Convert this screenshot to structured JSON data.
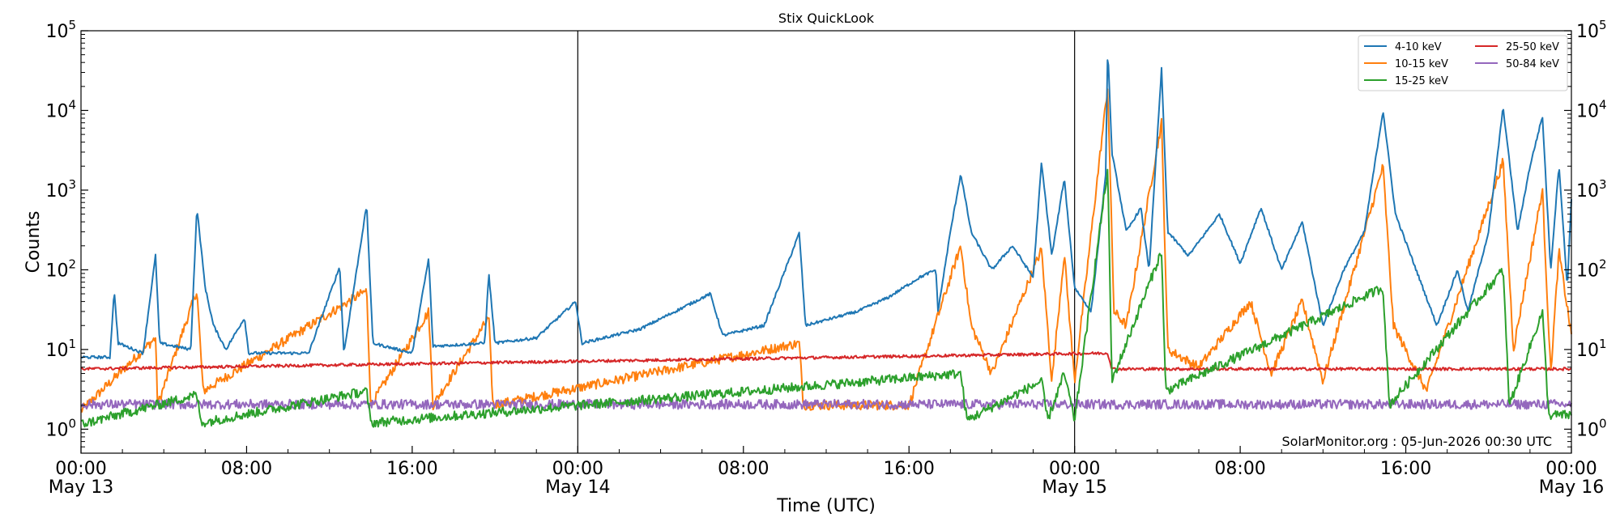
{
  "chart_data": {
    "type": "line",
    "title": "Stix QuickLook",
    "xlabel": "Time (UTC)",
    "ylabel": "Counts",
    "yscale": "log",
    "ylim": [
      0.5,
      100000
    ],
    "y_ticks": [
      {
        "value": 1,
        "base": "10",
        "exp": "0"
      },
      {
        "value": 10,
        "base": "10",
        "exp": "1"
      },
      {
        "value": 100,
        "base": "10",
        "exp": "2"
      },
      {
        "value": 1000,
        "base": "10",
        "exp": "3"
      },
      {
        "value": 10000,
        "base": "10",
        "exp": "4"
      },
      {
        "value": 100000,
        "base": "10",
        "exp": "5"
      }
    ],
    "xlim": [
      "2026-05-13 00:00",
      "2026-05-16 00:00"
    ],
    "x_ticks": [
      {
        "time": "2026-05-13 00:00",
        "line1": "00:00",
        "line2": "May 13"
      },
      {
        "time": "2026-05-13 08:00",
        "line1": "08:00",
        "line2": ""
      },
      {
        "time": "2026-05-13 16:00",
        "line1": "16:00",
        "line2": ""
      },
      {
        "time": "2026-05-14 00:00",
        "line1": "00:00",
        "line2": "May 14"
      },
      {
        "time": "2026-05-14 08:00",
        "line1": "08:00",
        "line2": ""
      },
      {
        "time": "2026-05-14 16:00",
        "line1": "16:00",
        "line2": ""
      },
      {
        "time": "2026-05-15 00:00",
        "line1": "00:00",
        "line2": "May 15"
      },
      {
        "time": "2026-05-15 08:00",
        "line1": "08:00",
        "line2": ""
      },
      {
        "time": "2026-05-15 16:00",
        "line1": "16:00",
        "line2": ""
      },
      {
        "time": "2026-05-16 00:00",
        "line1": "00:00",
        "line2": "May 16"
      }
    ],
    "day_boundaries": [
      "2026-05-14 00:00",
      "2026-05-15 00:00"
    ],
    "legend_position": "top-right",
    "annotation": "SolarMonitor.org : 05-Jun-2026 00:30 UTC",
    "series": [
      {
        "name": "4-10 keV",
        "color": "#1f77b4",
        "background": 8.5,
        "points": [
          [
            "2026-05-13 00:00",
            8
          ],
          [
            "2026-05-13 01:24",
            8
          ],
          [
            "2026-05-13 01:36",
            55
          ],
          [
            "2026-05-13 01:48",
            12
          ],
          [
            "2026-05-13 03:00",
            9
          ],
          [
            "2026-05-13 03:36",
            150
          ],
          [
            "2026-05-13 03:48",
            12
          ],
          [
            "2026-05-13 05:18",
            10
          ],
          [
            "2026-05-13 05:36",
            600
          ],
          [
            "2026-05-13 06:00",
            60
          ],
          [
            "2026-05-13 06:24",
            20
          ],
          [
            "2026-05-13 07:00",
            10
          ],
          [
            "2026-05-13 07:54",
            25
          ],
          [
            "2026-05-13 08:06",
            9
          ],
          [
            "2026-05-13 11:00",
            9
          ],
          [
            "2026-05-13 12:30",
            110
          ],
          [
            "2026-05-13 12:42",
            9
          ],
          [
            "2026-05-13 13:48",
            650
          ],
          [
            "2026-05-13 14:06",
            12
          ],
          [
            "2026-05-13 16:00",
            9
          ],
          [
            "2026-05-13 16:48",
            140
          ],
          [
            "2026-05-13 17:00",
            11
          ],
          [
            "2026-05-13 19:30",
            12
          ],
          [
            "2026-05-13 19:42",
            90
          ],
          [
            "2026-05-13 20:00",
            12
          ],
          [
            "2026-05-13 22:00",
            14
          ],
          [
            "2026-05-13 23:54",
            40
          ],
          [
            "2026-05-14 00:12",
            12
          ],
          [
            "2026-05-14 03:00",
            18
          ],
          [
            "2026-05-14 06:24",
            50
          ],
          [
            "2026-05-14 07:00",
            15
          ],
          [
            "2026-05-14 09:00",
            20
          ],
          [
            "2026-05-14 10:42",
            290
          ],
          [
            "2026-05-14 11:00",
            20
          ],
          [
            "2026-05-14 13:30",
            30
          ],
          [
            "2026-05-14 15:00",
            45
          ],
          [
            "2026-05-14 16:30",
            80
          ],
          [
            "2026-05-14 17:18",
            100
          ],
          [
            "2026-05-14 17:24",
            30
          ],
          [
            "2026-05-14 18:00",
            300
          ],
          [
            "2026-05-14 18:30",
            1600
          ],
          [
            "2026-05-14 19:00",
            300
          ],
          [
            "2026-05-14 20:00",
            100
          ],
          [
            "2026-05-14 21:00",
            200
          ],
          [
            "2026-05-14 22:00",
            80
          ],
          [
            "2026-05-14 22:24",
            2200
          ],
          [
            "2026-05-14 22:54",
            150
          ],
          [
            "2026-05-14 23:30",
            1400
          ],
          [
            "2026-05-15 00:00",
            60
          ],
          [
            "2026-05-15 00:48",
            30
          ],
          [
            "2026-05-15 01:30",
            1500
          ],
          [
            "2026-05-15 01:36",
            65000
          ],
          [
            "2026-05-15 01:48",
            3000
          ],
          [
            "2026-05-15 02:30",
            300
          ],
          [
            "2026-05-15 03:12",
            600
          ],
          [
            "2026-05-15 03:36",
            100
          ],
          [
            "2026-05-15 04:12",
            33000
          ],
          [
            "2026-05-15 04:30",
            300
          ],
          [
            "2026-05-15 05:30",
            150
          ],
          [
            "2026-05-15 07:00",
            500
          ],
          [
            "2026-05-15 08:00",
            120
          ],
          [
            "2026-05-15 09:00",
            600
          ],
          [
            "2026-05-15 10:00",
            100
          ],
          [
            "2026-05-15 11:00",
            400
          ],
          [
            "2026-05-15 12:00",
            20
          ],
          [
            "2026-05-15 13:00",
            100
          ],
          [
            "2026-05-15 14:00",
            300
          ],
          [
            "2026-05-15 14:54",
            10000
          ],
          [
            "2026-05-15 15:30",
            500
          ],
          [
            "2026-05-15 16:30",
            100
          ],
          [
            "2026-05-15 17:30",
            20
          ],
          [
            "2026-05-15 18:30",
            100
          ],
          [
            "2026-05-15 19:00",
            30
          ],
          [
            "2026-05-15 20:00",
            300
          ],
          [
            "2026-05-15 20:42",
            11000
          ],
          [
            "2026-05-15 21:24",
            300
          ],
          [
            "2026-05-15 22:00",
            2000
          ],
          [
            "2026-05-15 22:36",
            8500
          ],
          [
            "2026-05-15 23:00",
            100
          ],
          [
            "2026-05-15 23:24",
            2100
          ],
          [
            "2026-05-15 23:48",
            60
          ],
          [
            "2026-05-16 00:00",
            800
          ]
        ]
      },
      {
        "name": "10-15 keV",
        "color": "#ff7f0e",
        "background": 1.75,
        "points": [
          [
            "2026-05-13 00:00",
            1.7
          ],
          [
            "2026-05-13 03:36",
            14
          ],
          [
            "2026-05-13 03:42",
            2
          ],
          [
            "2026-05-13 05:36",
            55
          ],
          [
            "2026-05-13 05:54",
            3
          ],
          [
            "2026-05-13 13:48",
            55
          ],
          [
            "2026-05-13 14:00",
            2
          ],
          [
            "2026-05-13 16:48",
            30
          ],
          [
            "2026-05-13 17:00",
            2
          ],
          [
            "2026-05-13 19:42",
            25
          ],
          [
            "2026-05-13 19:54",
            2
          ],
          [
            "2026-05-14 10:42",
            12
          ],
          [
            "2026-05-14 10:54",
            2
          ],
          [
            "2026-05-14 16:00",
            2
          ],
          [
            "2026-05-14 18:30",
            200
          ],
          [
            "2026-05-14 19:00",
            20
          ],
          [
            "2026-05-14 20:00",
            5
          ],
          [
            "2026-05-14 22:24",
            180
          ],
          [
            "2026-05-14 22:54",
            4
          ],
          [
            "2026-05-14 23:30",
            160
          ],
          [
            "2026-05-15 00:00",
            4
          ],
          [
            "2026-05-15 01:36",
            20000
          ],
          [
            "2026-05-15 01:54",
            30
          ],
          [
            "2026-05-15 02:30",
            20
          ],
          [
            "2026-05-15 04:12",
            7000
          ],
          [
            "2026-05-15 04:30",
            10
          ],
          [
            "2026-05-15 06:00",
            6
          ],
          [
            "2026-05-15 08:30",
            40
          ],
          [
            "2026-05-15 09:30",
            5
          ],
          [
            "2026-05-15 11:00",
            40
          ],
          [
            "2026-05-15 12:00",
            4
          ],
          [
            "2026-05-15 14:54",
            2000
          ],
          [
            "2026-05-15 15:24",
            20
          ],
          [
            "2026-05-15 17:00",
            3
          ],
          [
            "2026-05-15 20:42",
            2300
          ],
          [
            "2026-05-15 21:12",
            10
          ],
          [
            "2026-05-15 22:36",
            1000
          ],
          [
            "2026-05-15 23:00",
            5
          ],
          [
            "2026-05-15 23:24",
            170
          ],
          [
            "2026-05-16 00:00",
            15
          ]
        ]
      },
      {
        "name": "15-25 keV",
        "color": "#2ca02c",
        "background": 1.15,
        "points": [
          [
            "2026-05-13 00:00",
            1.15
          ],
          [
            "2026-05-13 05:36",
            2.7
          ],
          [
            "2026-05-13 05:48",
            1.2
          ],
          [
            "2026-05-13 13:48",
            3
          ],
          [
            "2026-05-13 14:00",
            1.2
          ],
          [
            "2026-05-14 18:30",
            5
          ],
          [
            "2026-05-14 18:48",
            1.3
          ],
          [
            "2026-05-14 22:24",
            4
          ],
          [
            "2026-05-14 22:42",
            1.3
          ],
          [
            "2026-05-14 23:30",
            5
          ],
          [
            "2026-05-15 00:00",
            1.3
          ],
          [
            "2026-05-15 01:36",
            1800
          ],
          [
            "2026-05-15 01:48",
            4
          ],
          [
            "2026-05-15 04:12",
            170
          ],
          [
            "2026-05-15 04:24",
            3
          ],
          [
            "2026-05-15 14:54",
            60
          ],
          [
            "2026-05-15 15:12",
            2
          ],
          [
            "2026-05-15 20:42",
            100
          ],
          [
            "2026-05-15 21:00",
            2
          ],
          [
            "2026-05-15 22:36",
            30
          ],
          [
            "2026-05-15 22:54",
            1.5
          ],
          [
            "2026-05-16 00:00",
            1.5
          ]
        ]
      },
      {
        "name": "25-50 keV",
        "color": "#d62728",
        "background": 5.7,
        "points": [
          [
            "2026-05-13 00:00",
            5.7
          ],
          [
            "2026-05-15 01:36",
            9
          ],
          [
            "2026-05-15 01:48",
            5.7
          ],
          [
            "2026-05-16 00:00",
            5.7
          ]
        ]
      },
      {
        "name": "50-84 keV",
        "color": "#9467bd",
        "background": 2.05,
        "points": [
          [
            "2026-05-13 00:00",
            2.05
          ],
          [
            "2026-05-16 00:00",
            2.05
          ]
        ]
      }
    ]
  }
}
